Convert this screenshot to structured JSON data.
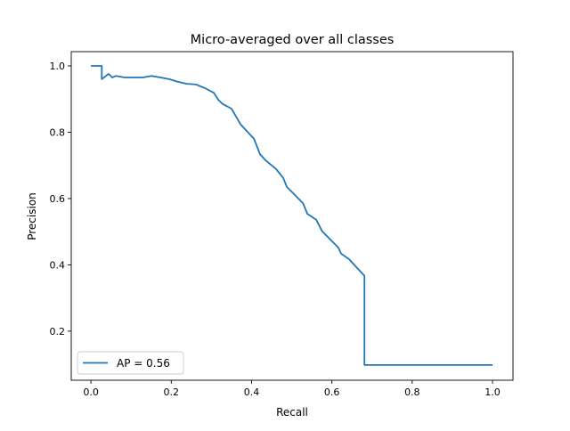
{
  "chart_data": {
    "type": "line",
    "title": "Micro-averaged over all classes",
    "xlabel": "Recall",
    "ylabel": "Precision",
    "xlim": [
      -0.049,
      1.051
    ],
    "ylim": [
      0.052,
      1.043
    ],
    "xticks": [
      0.0,
      0.2,
      0.4,
      0.6,
      0.8,
      1.0
    ],
    "xtick_labels": [
      "0.0",
      "0.2",
      "0.4",
      "0.6",
      "0.8",
      "1.0"
    ],
    "yticks": [
      0.2,
      0.4,
      0.6,
      0.8,
      1.0
    ],
    "ytick_labels": [
      "0.2",
      "0.4",
      "0.6",
      "0.8",
      "1.0"
    ],
    "grid": false,
    "legend_position": "lower-left",
    "color": "#1f77b4",
    "series": [
      {
        "name": "AP = 0.56",
        "x": [
          0,
          0.027,
          0.027,
          0.044,
          0.053,
          0.062,
          0.084,
          0.106,
          0.129,
          0.151,
          0.173,
          0.195,
          0.217,
          0.239,
          0.262,
          0.284,
          0.306,
          0.317,
          0.328,
          0.35,
          0.373,
          0.406,
          0.421,
          0.435,
          0.461,
          0.479,
          0.488,
          0.506,
          0.528,
          0.539,
          0.561,
          0.576,
          0.594,
          0.616,
          0.623,
          0.643,
          0.661,
          0.681,
          0.681,
          1.0
        ],
        "y": [
          1.0,
          1.0,
          0.96,
          0.976,
          0.965,
          0.97,
          0.965,
          0.965,
          0.965,
          0.97,
          0.965,
          0.96,
          0.952,
          0.946,
          0.944,
          0.933,
          0.919,
          0.898,
          0.885,
          0.871,
          0.823,
          0.78,
          0.734,
          0.715,
          0.689,
          0.662,
          0.635,
          0.613,
          0.586,
          0.554,
          0.536,
          0.501,
          0.479,
          0.452,
          0.434,
          0.417,
          0.393,
          0.367,
          0.098,
          0.098
        ]
      }
    ]
  }
}
